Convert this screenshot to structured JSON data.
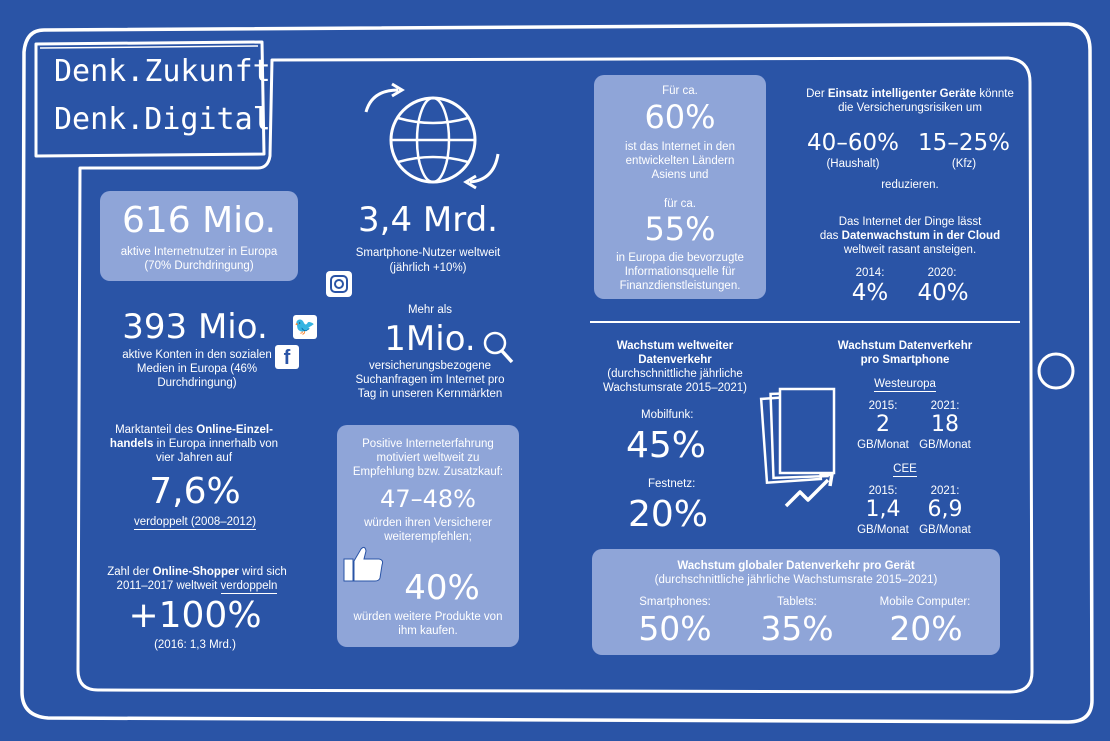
{
  "title": {
    "line1": "Denk.Zukunft",
    "line2": "Denk.Digital"
  },
  "internet_users": {
    "value": "616 Mio.",
    "label": "aktive Internetnutzer in Europa (70% Durchdringung)"
  },
  "social_accounts": {
    "value": "393 Mio.",
    "label": "aktive Konten in den sozialen Medien in Europa (46% Durchdringung)"
  },
  "online_retail": {
    "label_pre": "Marktanteil des ",
    "label_bold1": "Online-Einzel-",
    "label_bold2": "handels",
    "label_post": " in Europa innerhalb von vier Jahren auf",
    "value": "7,6%",
    "note": "verdoppelt (2008–2012)"
  },
  "online_shoppers": {
    "label_pre": "Zahl der ",
    "label_bold": "Online-Shopper",
    "label_mid": " wird sich 2011–2017 weltweit ",
    "label_ul": "verdoppeln",
    "value": "+100%",
    "note": "(2016: 1,3 Mrd.)"
  },
  "smartphone_users": {
    "value": "3,4 Mrd.",
    "label1": "Smartphone-Nutzer weltweit",
    "label2": "(jährlich +10%)"
  },
  "searches": {
    "pre": "Mehr als",
    "value": "1Mio.",
    "label": "versicherungsbezogene Suchanfragen im Internet pro Tag in unseren Kernmärkten"
  },
  "experience": {
    "intro": "Positive Interneterfahrung motiviert weltweit zu Empfehlung bzw. Zusatzkauf:",
    "value1": "47–48%",
    "text1": "würden ihren Versicherer weiterempfehlen;",
    "value2": "40%",
    "text2": "würden weitere Produkte von ihm kaufen."
  },
  "info_source": {
    "pre1": "Für ca.",
    "value1": "60%",
    "text1": "ist das Internet in den entwickelten Ländern Asiens und",
    "pre2": "für ca.",
    "value2": "55%",
    "text2": "in Europa die bevorzugte Informationsquelle für Finanzdienstleistungen."
  },
  "smart_devices": {
    "intro_pre": "Der ",
    "intro_bold": "Einsatz intelligenter Geräte",
    "intro_post": " könnte die Versicherungsrisiken um",
    "v1": "40–60%",
    "l1": "(Haushalt)",
    "v2": "15–25%",
    "l2": "(Kfz)",
    "outro": "reduzieren."
  },
  "iot": {
    "intro1": "Das Internet der Dinge lässt",
    "intro2_pre": "das ",
    "intro2_bold": "Datenwachstum in der Cloud",
    "intro3": "weltweit rasant ansteigen.",
    "y1": "2014:",
    "v1": "4%",
    "y2": "2020:",
    "v2": "40%"
  },
  "traffic_growth": {
    "title1": "Wachstum weltweiter",
    "title2": "Datenverkehr",
    "sub": "(durchschnittliche jährliche Wachstumsrate 2015–2021)",
    "mobile_label": "Mobilfunk:",
    "mobile_value": "45%",
    "fixed_label": "Festnetz:",
    "fixed_value": "20%"
  },
  "smartphone_traffic": {
    "title1": "Wachstum Datenverkehr",
    "title2": "pro Smartphone",
    "region1": "Westeuropa",
    "r1_y1": "2015:",
    "r1_v1": "2",
    "r1_u1": "GB/Monat",
    "r1_y2": "2021:",
    "r1_v2": "18",
    "r1_u2": "GB/Monat",
    "region2": "CEE",
    "r2_y1": "2015:",
    "r2_v1": "1,4",
    "r2_u1": "GB/Monat",
    "r2_y2": "2021:",
    "r2_v2": "6,9",
    "r2_u2": "GB/Monat"
  },
  "device_traffic": {
    "title": "Wachstum globaler Datenverkehr pro Gerät",
    "sub": "(durchschnittliche jährliche Wachstumsrate 2015–2021)",
    "items": [
      {
        "label": "Smartphones:",
        "value": "50%"
      },
      {
        "label": "Tablets:",
        "value": "35%"
      },
      {
        "label": "Mobile Computer:",
        "value": "20%"
      }
    ]
  },
  "colors": {
    "background": "#2a54a6",
    "box": "#8fa5d8",
    "text": "#ffffff"
  },
  "icons": [
    "globe-icon",
    "instagram-icon",
    "twitter-icon",
    "facebook-icon",
    "magnifier-icon",
    "thumbs-up-icon",
    "documents-icon",
    "trend-arrow-icon",
    "home-button-icon"
  ]
}
